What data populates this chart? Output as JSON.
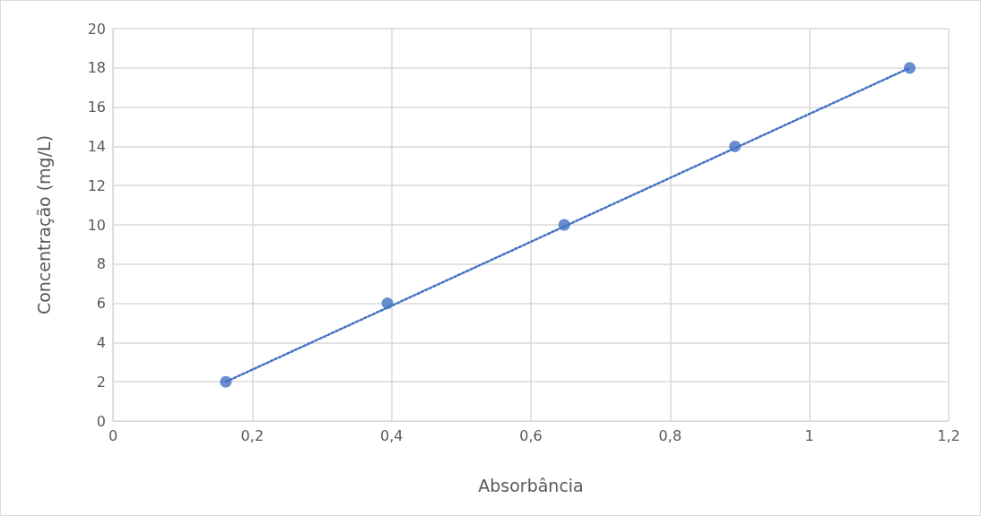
{
  "chart_data": {
    "type": "scatter",
    "xlabel": "Absorbância",
    "ylabel": "Concentração (mg/L)",
    "series": [
      {
        "color": "#4472c4",
        "x": [
          0.162,
          0.394,
          0.648,
          0.893,
          1.144
        ],
        "values": [
          2,
          6,
          10,
          14,
          18
        ],
        "marker": "circle"
      },
      {
        "type": "line",
        "color": "#4472c4",
        "x": [
          0.162,
          1.144
        ],
        "values": [
          2,
          18
        ],
        "line_style": "dotted",
        "marker": "none"
      }
    ],
    "xlim": [
      0,
      1.2
    ],
    "xticks": [
      0,
      {
        "value": 0.2,
        "label": "0,2"
      },
      {
        "value": 0.4,
        "label": "0,4"
      },
      {
        "value": 0.6,
        "label": "0,6"
      },
      {
        "value": 0.8,
        "label": "0,8"
      },
      1,
      {
        "value": 1.2,
        "label": "1,2"
      }
    ],
    "ylim": [
      0,
      20
    ],
    "yticks": [
      0,
      2,
      4,
      6,
      8,
      10,
      12,
      14,
      16,
      18,
      20
    ],
    "grid": true
  }
}
